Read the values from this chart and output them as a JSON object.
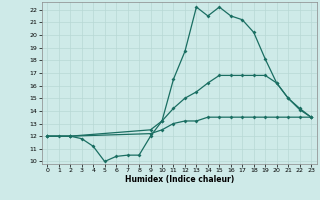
{
  "xlabel": "Humidex (Indice chaleur)",
  "bg_color": "#ceeae8",
  "grid_color": "#b8d8d5",
  "line_color": "#1a6e62",
  "xlim": [
    -0.5,
    23.5
  ],
  "ylim": [
    9.8,
    22.6
  ],
  "yticks": [
    10,
    11,
    12,
    13,
    14,
    15,
    16,
    17,
    18,
    19,
    20,
    21,
    22
  ],
  "xticks": [
    0,
    1,
    2,
    3,
    4,
    5,
    6,
    7,
    8,
    9,
    10,
    11,
    12,
    13,
    14,
    15,
    16,
    17,
    18,
    19,
    20,
    21,
    22,
    23
  ],
  "line1_x": [
    0,
    1,
    2,
    3,
    4,
    5,
    6,
    7,
    8,
    9,
    10,
    11,
    12,
    13,
    14,
    15,
    16,
    17,
    18,
    19,
    20,
    21,
    22,
    23
  ],
  "line1_y": [
    12,
    12,
    12,
    11.8,
    11.2,
    10.0,
    10.4,
    10.5,
    10.5,
    12.0,
    13.2,
    16.5,
    18.7,
    22.2,
    21.5,
    22.2,
    21.5,
    21.2,
    20.2,
    18.1,
    16.2,
    15.0,
    14.1,
    13.5
  ],
  "line2_x": [
    0,
    2,
    9,
    10,
    11,
    12,
    13,
    14,
    15,
    16,
    17,
    18,
    19,
    20,
    21,
    22,
    23
  ],
  "line2_y": [
    12,
    12,
    12.5,
    13.2,
    14.2,
    15.0,
    15.5,
    16.2,
    16.8,
    16.8,
    16.8,
    16.8,
    16.8,
    16.2,
    15.0,
    14.2,
    13.5
  ],
  "line3_x": [
    0,
    2,
    9,
    10,
    11,
    12,
    13,
    14,
    15,
    16,
    17,
    18,
    19,
    20,
    21,
    22,
    23
  ],
  "line3_y": [
    12,
    12,
    12.2,
    12.5,
    13.0,
    13.2,
    13.2,
    13.5,
    13.5,
    13.5,
    13.5,
    13.5,
    13.5,
    13.5,
    13.5,
    13.5,
    13.5
  ]
}
